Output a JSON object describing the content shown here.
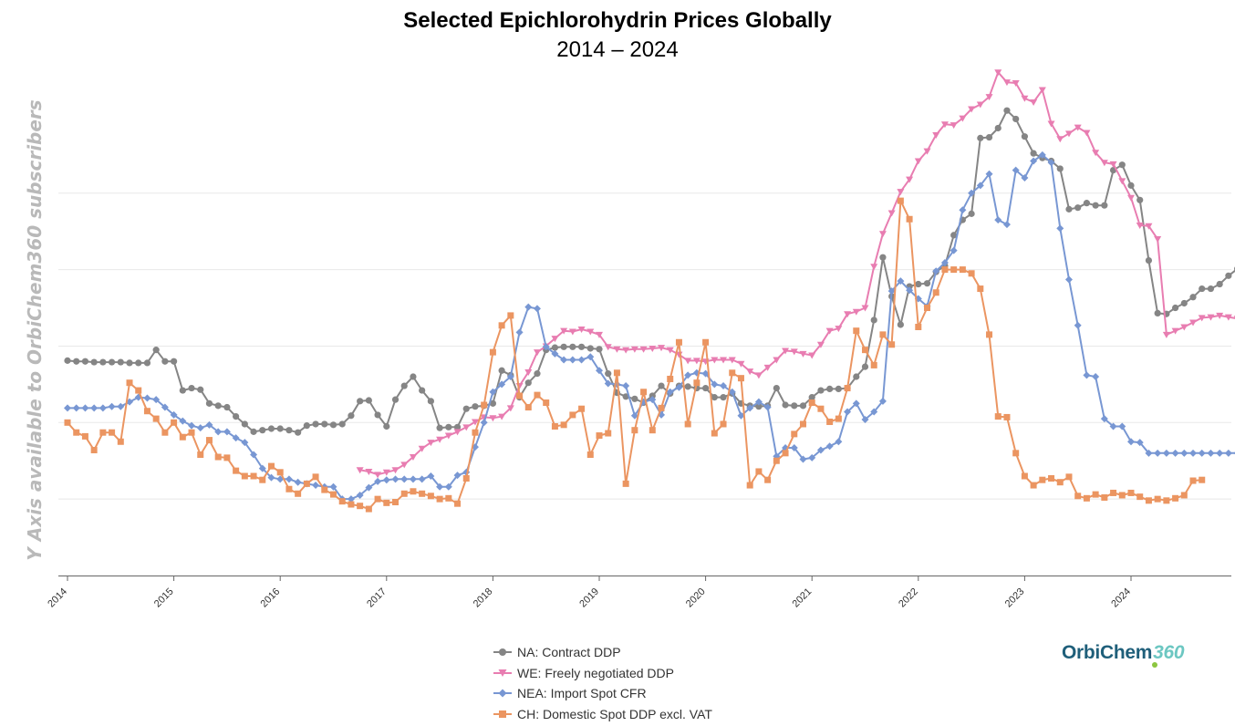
{
  "chart_data": {
    "type": "line",
    "title": "Selected Epichlorohydrin Prices Globally",
    "subtitle": "2014 – 2024",
    "y_axis_note": "Y Axis available to OrbiChem360 subscribers",
    "x_tick_labels": [
      "2014",
      "2015",
      "2016",
      "2017",
      "2018",
      "2019",
      "2020",
      "2021",
      "2022",
      "2023",
      "2024"
    ],
    "x_start_year": 2014,
    "x_range": [
      2014.0,
      2024.95
    ],
    "ylim": [
      0,
      600
    ],
    "gridlines": [
      100,
      200,
      300,
      400,
      500
    ],
    "y_units_shown": false,
    "legend_position": "bottom-center",
    "series": [
      {
        "name": "NA: Contract DDP",
        "color": "#858585",
        "marker": "circle",
        "start": 2014.0,
        "values": [
          281,
          280,
          280,
          279,
          279,
          279,
          279,
          278,
          278,
          278,
          295,
          280,
          280,
          242,
          245,
          243,
          225,
          222,
          220,
          208,
          198,
          188,
          190,
          192,
          192,
          190,
          187,
          196,
          198,
          198,
          197,
          198,
          209,
          228,
          229,
          210,
          195,
          230,
          248,
          260,
          242,
          228,
          193,
          194,
          194,
          218,
          221,
          222,
          225,
          268,
          262,
          233,
          252,
          264,
          295,
          298,
          299,
          299,
          299,
          297,
          296,
          264,
          239,
          234,
          231,
          226,
          235,
          248,
          238,
          248,
          247,
          245,
          245,
          233,
          233,
          238,
          225,
          222,
          221,
          222,
          245,
          223,
          222,
          222,
          233,
          242,
          244,
          244,
          245,
          260,
          273,
          334,
          416,
          365,
          328,
          378,
          381,
          382,
          397,
          405,
          445,
          465,
          473,
          572,
          573,
          585,
          608,
          597,
          574,
          552,
          546,
          542,
          532,
          479,
          481,
          487,
          484,
          484,
          530,
          537,
          510,
          491,
          412,
          343,
          342,
          350,
          356,
          364,
          375,
          375,
          381,
          392,
          401,
          407,
          376,
          373,
          378,
          391,
          397,
          386,
          370
        ]
      },
      {
        "name": "WE: Freely negotiated DDP",
        "color": "#e87db1",
        "marker": "triangle-down",
        "start": 2016.75,
        "values": [
          138,
          136,
          132,
          135,
          138,
          145,
          155,
          166,
          174,
          178,
          183,
          188,
          194,
          201,
          207,
          206,
          208,
          219,
          248,
          266,
          292,
          300,
          310,
          320,
          319,
          322,
          319,
          315,
          299,
          296,
          295,
          296,
          296,
          297,
          298,
          295,
          289,
          281,
          281,
          280,
          282,
          282,
          282,
          277,
          267,
          262,
          272,
          282,
          294,
          293,
          290,
          288,
          302,
          320,
          323,
          342,
          345,
          350,
          404,
          447,
          474,
          502,
          518,
          542,
          555,
          576,
          590,
          589,
          598,
          610,
          616,
          626,
          658,
          645,
          644,
          624,
          619,
          635,
          591,
          571,
          578,
          586,
          579,
          553,
          540,
          538,
          516,
          494,
          458,
          457,
          440,
          315,
          320,
          325,
          331,
          337,
          338,
          340,
          338,
          336,
          339,
          343,
          346,
          345,
          338
        ]
      },
      {
        "name": "NEA: Import Spot CFR",
        "color": "#7897d3",
        "marker": "diamond",
        "start": 2014.0,
        "values": [
          219,
          219,
          219,
          219,
          219,
          221,
          221,
          227,
          233,
          232,
          230,
          220,
          210,
          202,
          196,
          193,
          197,
          188,
          188,
          180,
          174,
          158,
          140,
          128,
          126,
          126,
          122,
          120,
          118,
          116,
          116,
          100,
          100,
          105,
          115,
          123,
          125,
          126,
          126,
          126,
          126,
          130,
          116,
          116,
          131,
          135,
          168,
          200,
          240,
          250,
          260,
          318,
          351,
          349,
          299,
          290,
          282,
          282,
          282,
          286,
          268,
          251,
          250,
          248,
          209,
          227,
          230,
          210,
          240,
          246,
          262,
          265,
          264,
          250,
          248,
          240,
          209,
          219,
          227,
          220,
          156,
          167,
          167,
          152,
          154,
          164,
          169,
          175,
          214,
          225,
          204,
          214,
          228,
          372,
          385,
          373,
          362,
          352,
          398,
          409,
          425,
          478,
          500,
          510,
          525,
          465,
          459,
          530,
          520,
          542,
          550,
          540,
          454,
          387,
          327,
          262,
          260,
          205,
          195,
          195,
          175,
          174,
          160,
          160,
          160,
          160,
          160,
          160,
          160,
          160,
          160,
          160,
          160,
          160,
          160,
          160,
          160,
          160,
          162,
          162,
          165
        ]
      },
      {
        "name": "CH: Domestic Spot DDP excl. VAT",
        "color": "#eb9561",
        "marker": "square",
        "start": 2014.0,
        "values": [
          200,
          187,
          182,
          164,
          187,
          187,
          175,
          252,
          242,
          215,
          205,
          187,
          200,
          181,
          187,
          158,
          177,
          155,
          154,
          137,
          130,
          130,
          125,
          143,
          135,
          113,
          107,
          120,
          129,
          112,
          106,
          97,
          93,
          91,
          87,
          100,
          95,
          96,
          107,
          110,
          107,
          104,
          100,
          101,
          94,
          127,
          187,
          223,
          292,
          327,
          340,
          235,
          220,
          236,
          226,
          195,
          197,
          210,
          218,
          158,
          183,
          186,
          265,
          120,
          190,
          240,
          190,
          219,
          257,
          305,
          198,
          252,
          305,
          186,
          198,
          265,
          258,
          118,
          136,
          125,
          150,
          160,
          185,
          198,
          226,
          218,
          201,
          205,
          245,
          320,
          295,
          275,
          315,
          302,
          490,
          466,
          325,
          350,
          370,
          400,
          400,
          400,
          395,
          375,
          315,
          208,
          207,
          160,
          130,
          118,
          125,
          127,
          122,
          129,
          104,
          101,
          106,
          102,
          108,
          105,
          108,
          103,
          98,
          100,
          98,
          101,
          105,
          124,
          125
        ]
      }
    ]
  },
  "legend": {
    "items": [
      {
        "label": "NA: Contract DDP",
        "color": "#858585",
        "marker": "circle"
      },
      {
        "label": "WE: Freely negotiated DDP",
        "color": "#e87db1",
        "marker": "triangle-down"
      },
      {
        "label": "NEA: Import Spot CFR",
        "color": "#7897d3",
        "marker": "diamond"
      },
      {
        "label": "CH: Domestic Spot DDP excl. VAT",
        "color": "#eb9561",
        "marker": "square"
      }
    ]
  },
  "logo": {
    "word": "OrbiChem",
    "number": "360"
  }
}
